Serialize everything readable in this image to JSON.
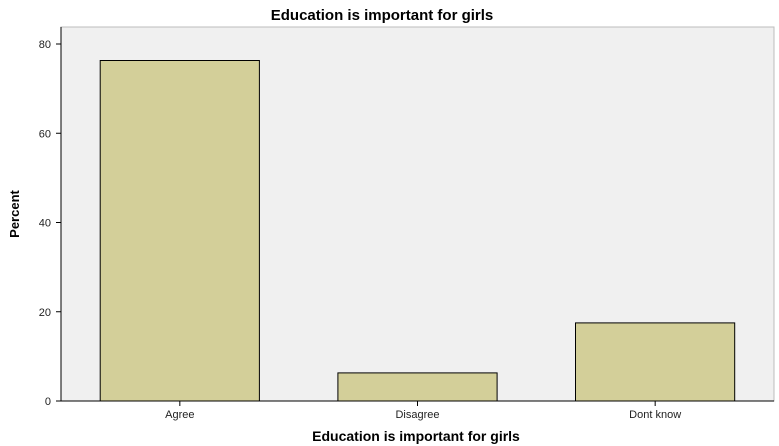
{
  "chart_data": {
    "type": "bar",
    "title": "Education is important for girls",
    "xlabel": "Education is important for girls",
    "ylabel": "Percent",
    "categories": [
      "Agree",
      "Disagree",
      "Dont know"
    ],
    "values": [
      76.3,
      6.3,
      17.5
    ],
    "ylim": [
      0,
      85
    ],
    "yticks": [
      "0",
      "20",
      "40",
      "60",
      "80"
    ],
    "grid": false,
    "bar_color": "#d3cf99",
    "plot_background": "#f0f0f0"
  }
}
